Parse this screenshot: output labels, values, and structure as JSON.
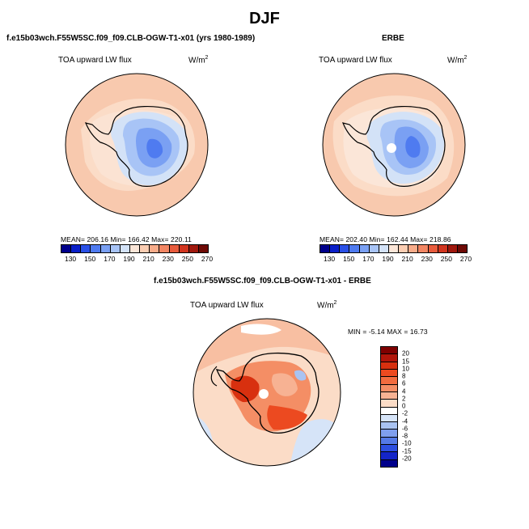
{
  "page": {
    "title": "DJF"
  },
  "panels": {
    "model": {
      "case": "f.e15b03wch.F55W5SC.f09_f09.CLB-OGW-T1-x01 (yrs 1980-1989)",
      "variable": "TOA upward LW flux",
      "units": "W/m",
      "units_sup": "2",
      "stats": "MEAN= 206.16   Min= 166.42   Max= 220.11"
    },
    "obs": {
      "case": "ERBE",
      "variable": "TOA upward LW flux",
      "units": "W/m",
      "units_sup": "2",
      "stats": "MEAN= 202.40   Min= 162.44   Max= 218.86"
    },
    "diff": {
      "case": "f.e15b03wch.F55W5SC.f09_f09.CLB-OGW-T1-x01 - ERBE",
      "variable": "TOA upward LW flux",
      "units": "W/m",
      "units_sup": "2",
      "stats": "MIN =  -5.14  MAX =  16.73"
    }
  },
  "colorbars": {
    "field": {
      "tick_labels": [
        "130",
        "150",
        "170",
        "190",
        "210",
        "230",
        "250",
        "270"
      ],
      "colors": [
        "#00008b",
        "#0a1fc8",
        "#2a50e6",
        "#4f7bf0",
        "#7aa0f3",
        "#a8c4f6",
        "#d3e2f7",
        "#fbe6d8",
        "#fbcdb2",
        "#f8ac8a",
        "#f28663",
        "#e85c3d",
        "#d1351f",
        "#a0190e",
        "#6e0a05"
      ]
    },
    "diff": {
      "tick_labels": [
        "20",
        "15",
        "10",
        "8",
        "6",
        "4",
        "2",
        "0",
        "-2",
        "-4",
        "-6",
        "-8",
        "-10",
        "-15",
        "-20"
      ],
      "colors": [
        "#7f0000",
        "#b1150a",
        "#d8300f",
        "#ec4a20",
        "#f26c3f",
        "#f48e65",
        "#f7b293",
        "#fbdcc7",
        "#ffffff",
        "#d6e4f8",
        "#a9c3f2",
        "#7f9fee",
        "#557ae6",
        "#2d4fe0",
        "#1425c8",
        "#00008b"
      ]
    }
  }
}
